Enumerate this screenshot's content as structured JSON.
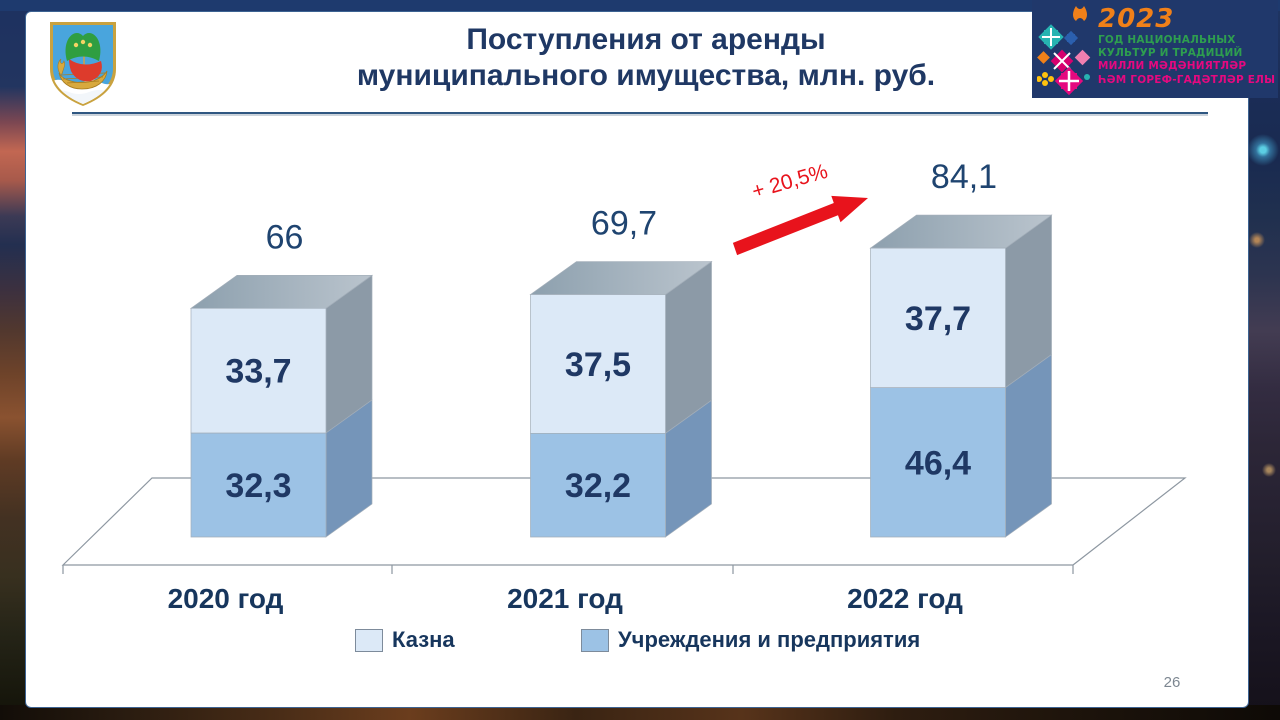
{
  "slide": {
    "title_line1": "Поступления от аренды",
    "title_line2": "муниципального имущества, млн. руб."
  },
  "year_logo": {
    "year": "2023",
    "line1": "ГОД НАЦИОНАЛЬНЫХ",
    "line2": "КУЛЬТУР И ТРАДИЦИЙ",
    "line3": "МИЛЛИ МӘДӘНИЯТЛӘР",
    "line4": "ҺӘМ ГОРЕФ-ГАДӘТЛӘР ЕЛЫ",
    "colors": {
      "year": "#f08019",
      "russian_lines": "#2e9e4f",
      "tatar_lines": "#e5097f"
    }
  },
  "icons": {
    "coat_of_arms": "city-coat-of-arms (golden boat with green sail on blue shield)",
    "ornament": "folk-pattern-ornament",
    "arrow": "red-growth-arrow"
  },
  "chart_data": {
    "type": "bar",
    "variant": "3d-stacked-column",
    "title": "Поступления от аренды муниципального имущества, млн. руб.",
    "units": "млн. руб.",
    "categories": [
      "2020 год",
      "2021 год",
      "2022 год"
    ],
    "series": [
      {
        "name": "Казна",
        "color": "#dce9f7",
        "stack_position": "top",
        "values": [
          33.7,
          37.5,
          37.7
        ],
        "labels": [
          "33,7",
          "37,5",
          "37,7"
        ]
      },
      {
        "name": "Учреждения и предприятия",
        "color": "#9cc2e5",
        "stack_position": "bottom",
        "values": [
          32.3,
          32.2,
          46.4
        ],
        "labels": [
          "32,3",
          "32,2",
          "46,4"
        ]
      }
    ],
    "totals": [
      66,
      69.7,
      84.1
    ],
    "totals_labels": [
      "66",
      "69,7",
      "84,1"
    ],
    "annotation": {
      "text": "+ 20,5%",
      "color": "#e8131c",
      "from": "2021 год",
      "to": "2022 год"
    },
    "legend_position": "bottom",
    "value_axis_visible": false,
    "label_colors": {
      "totals": "#1f4470",
      "segments": "#1f3864",
      "categories": "#17365d"
    }
  },
  "footer": {
    "page_number": "26"
  }
}
